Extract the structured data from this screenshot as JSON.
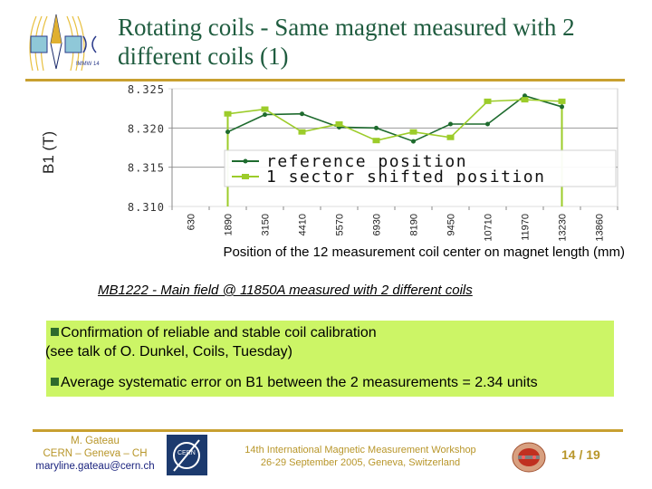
{
  "slide": {
    "title": "Rotating coils - Same magnet measured with 2 different coils (1)",
    "subtitle": "MB1222 - Main field @ 11850A measured with 2 different coils",
    "bullets": [
      {
        "line1": "Confirmation of reliable and stable coil calibration",
        "line2": "(see talk of O. Dunkel, Coils, Tuesday)"
      },
      {
        "line1": "Average systematic error on B1 between the 2 measurements = 2.34 units"
      }
    ],
    "footer": {
      "author_name": "M. Gateau",
      "author_org": "CERN – Geneva – CH",
      "author_email": "maryline.gateau@cern.ch",
      "cern_logo_label": "CERN",
      "workshop_line1": "14th International Magnetic Measurement Workshop",
      "workshop_line2": "26-29 September 2005, Geneva, Switzerland",
      "page": "14 / 19"
    },
    "logo_label": "IMMW 14",
    "colors": {
      "accent_rule": "#c8a030",
      "title": "#1f5c3f",
      "box": "#ccf566",
      "ref_series": "#1e6b2e",
      "shift_series": "#9ccc2a"
    }
  },
  "chart_data": {
    "type": "line",
    "title": "",
    "xlabel": "Position of the 12 measurement coil center on magnet length (mm)",
    "ylabel": "B1 (T)",
    "ylim": [
      8.31,
      8.325
    ],
    "yticks": [
      "8.325",
      "8.320",
      "8.315",
      "8.310"
    ],
    "categories": [
      "630",
      "1890",
      "3150",
      "4410",
      "5570",
      "6930",
      "8190",
      "9450",
      "10710",
      "11970",
      "13230",
      "13860"
    ],
    "grid": true,
    "legend_position": "inside-bottom",
    "series": [
      {
        "name": "reference position",
        "values": [
          null,
          8.3195,
          8.3217,
          8.3218,
          8.3201,
          8.32,
          8.3183,
          8.3205,
          8.3205,
          8.3241,
          8.3227,
          null
        ]
      },
      {
        "name": "1 sector shifted position",
        "values": [
          null,
          8.3218,
          8.3224,
          8.3195,
          8.3205,
          8.3184,
          8.3195,
          8.3188,
          8.3234,
          8.3236,
          8.3234,
          null
        ]
      }
    ]
  }
}
